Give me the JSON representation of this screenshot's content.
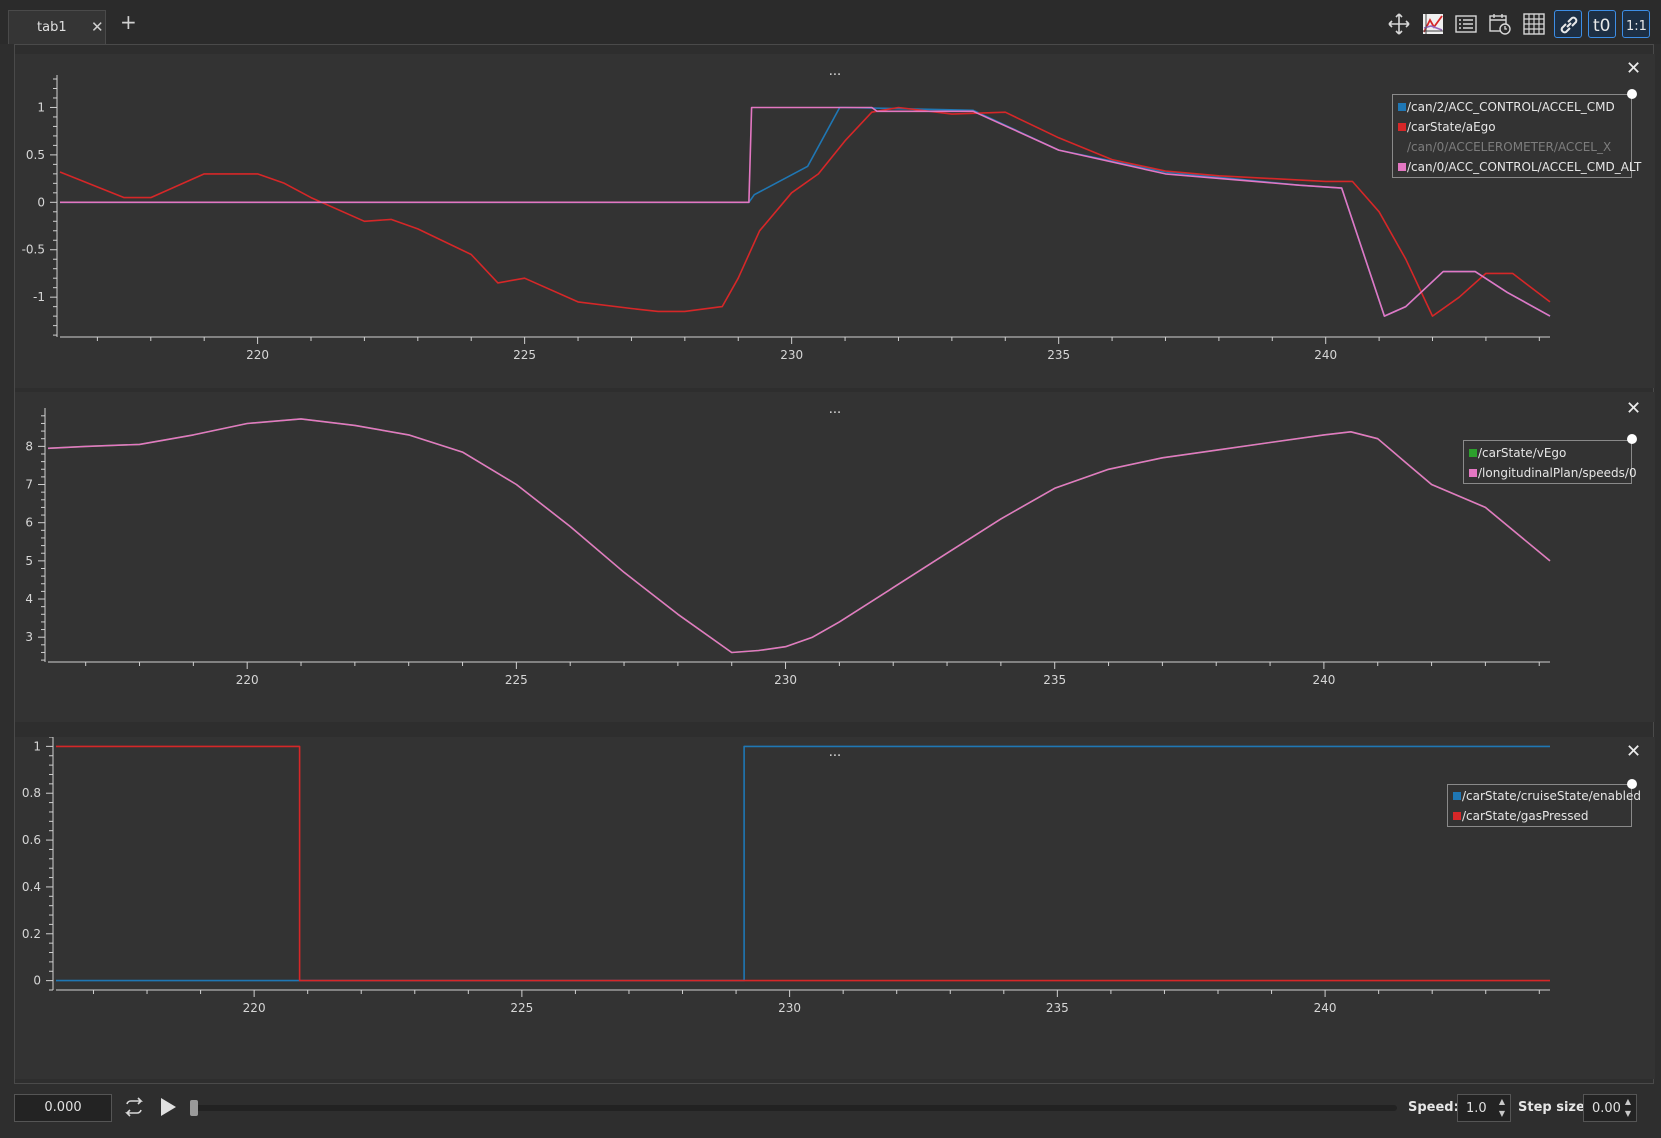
{
  "tab": {
    "label": "tab1"
  },
  "toolbar": {
    "icons": [
      "move-icon",
      "zoom-fit-icon",
      "list-icon",
      "calendar-icon",
      "grid-icon",
      "link-icon",
      "t0-icon",
      "one-to-one-icon"
    ],
    "t0_label": "t0",
    "ratio_label": "1:1"
  },
  "panels": [
    {
      "title": "...",
      "legend": [
        {
          "label": "/can/2/ACC_CONTROL/ACCEL_CMD",
          "color": "#1f77b4",
          "visible": true
        },
        {
          "label": "/carState/aEgo",
          "color": "#d62728",
          "visible": true
        },
        {
          "label": "/can/0/ACCELEROMETER/ACCEL_X",
          "color": "#7d7d7d",
          "visible": false
        },
        {
          "label": "/can/0/ACC_CONTROL/ACCEL_CMD_ALT",
          "color": "#e377c2",
          "visible": true
        }
      ]
    },
    {
      "title": "...",
      "legend": [
        {
          "label": "/carState/vEgo",
          "color": "#2ca02c",
          "visible": true
        },
        {
          "label": "/longitudinalPlan/speeds/0",
          "color": "#e377c2",
          "visible": true
        }
      ]
    },
    {
      "title": "...",
      "legend": [
        {
          "label": "/carState/cruiseState/enabled",
          "color": "#1f77b4",
          "visible": true
        },
        {
          "label": "/carState/gasPressed",
          "color": "#d62728",
          "visible": true
        }
      ]
    }
  ],
  "playback": {
    "time": "0.000",
    "speed_label": "Speed:",
    "speed_value": "1.0",
    "step_label": "Step size:",
    "step_value": "0.00",
    "progress": 0.0
  },
  "chart_data": [
    {
      "type": "line",
      "title": "...",
      "xlim": [
        216.3,
        244.2
      ],
      "ylim": [
        -1.42,
        1.3
      ],
      "xticks": [
        220,
        225,
        230,
        235,
        240
      ],
      "yticks": [
        -1,
        -0.5,
        0,
        0.5,
        1
      ],
      "grid": false,
      "legend_position": "top-right",
      "series": [
        {
          "name": "/can/2/ACC_CONTROL/ACCEL_CMD",
          "color": "#1f77b4",
          "x": [
            216.3,
            229.2,
            229.3,
            230.3,
            230.9,
            231.0,
            233.4,
            235.0,
            237.0,
            239.5,
            240.3,
            241.1,
            241.5,
            242.2,
            242.8,
            243.4,
            244.2
          ],
          "y": [
            0,
            0,
            0.08,
            0.38,
            1.0,
            1.0,
            0.97,
            0.55,
            0.32,
            0.18,
            0.15,
            -1.2,
            -1.1,
            -0.73,
            -0.73,
            -0.95,
            -1.2
          ]
        },
        {
          "name": "/carState/aEgo",
          "color": "#d62728",
          "x": [
            216.3,
            217.5,
            218.0,
            219.0,
            220.0,
            220.5,
            221.0,
            222.0,
            222.5,
            223.0,
            224.0,
            224.5,
            225.0,
            226.0,
            227.0,
            227.5,
            228.0,
            228.7,
            229.0,
            229.4,
            230.0,
            230.5,
            231.0,
            231.5,
            232.0,
            233.0,
            234.0,
            235.0,
            236.0,
            237.0,
            238.0,
            240.0,
            240.5,
            241.0,
            241.5,
            242.0,
            242.5,
            243.0,
            243.5,
            244.2
          ],
          "y": [
            0.32,
            0.05,
            0.05,
            0.3,
            0.3,
            0.2,
            0.05,
            -0.2,
            -0.18,
            -0.28,
            -0.55,
            -0.85,
            -0.8,
            -1.05,
            -1.12,
            -1.15,
            -1.15,
            -1.1,
            -0.8,
            -0.3,
            0.1,
            0.3,
            0.65,
            0.95,
            1.0,
            0.93,
            0.95,
            0.68,
            0.45,
            0.33,
            0.28,
            0.22,
            0.22,
            -0.1,
            -0.6,
            -1.2,
            -1.0,
            -0.75,
            -0.75,
            -1.05
          ]
        },
        {
          "name": "/can/0/ACC_CONTROL/ACCEL_CMD_ALT",
          "color": "#e377c2",
          "x": [
            216.3,
            229.2,
            229.25,
            231.5,
            231.6,
            233.4,
            235.0,
            237.0,
            239.5,
            240.3,
            241.1,
            241.5,
            242.2,
            242.8,
            243.4,
            244.2
          ],
          "y": [
            0,
            0,
            1.0,
            1.0,
            0.96,
            0.96,
            0.55,
            0.3,
            0.18,
            0.15,
            -1.2,
            -1.1,
            -0.73,
            -0.73,
            -0.95,
            -1.2
          ]
        }
      ]
    },
    {
      "type": "line",
      "title": "...",
      "xlim": [
        216.3,
        244.2
      ],
      "ylim": [
        2.35,
        8.9
      ],
      "xticks": [
        220,
        225,
        230,
        235,
        240
      ],
      "yticks": [
        3,
        4,
        5,
        6,
        7,
        8
      ],
      "grid": false,
      "legend_position": "top-right",
      "series": [
        {
          "name": "/carState/vEgo",
          "color": "#2ca02c",
          "x": [
            216.3,
            217.0,
            218.0,
            219.0,
            220.0,
            221.0,
            222.0,
            223.0,
            224.0,
            225.0,
            226.0,
            227.0,
            228.0,
            229.0,
            229.5,
            230.0,
            230.5,
            231.0,
            232.0,
            233.0,
            234.0,
            235.0,
            236.0,
            237.0,
            238.0,
            239.0,
            240.0,
            240.5,
            241.0,
            241.5,
            242.0,
            243.0,
            244.2
          ],
          "y": [
            7.95,
            8.0,
            8.05,
            8.3,
            8.6,
            8.72,
            8.55,
            8.3,
            7.85,
            7.0,
            5.9,
            4.7,
            3.6,
            2.6,
            2.65,
            2.75,
            3.0,
            3.4,
            4.3,
            5.2,
            6.1,
            6.9,
            7.4,
            7.7,
            7.9,
            8.1,
            8.3,
            8.38,
            8.2,
            7.6,
            7.0,
            6.4,
            5.0
          ]
        },
        {
          "name": "/longitudinalPlan/speeds/0",
          "color": "#e377c2",
          "x": [
            216.3,
            217.0,
            218.0,
            219.0,
            220.0,
            221.0,
            222.0,
            223.0,
            224.0,
            225.0,
            226.0,
            227.0,
            228.0,
            229.0,
            229.5,
            230.0,
            230.5,
            231.0,
            232.0,
            233.0,
            234.0,
            235.0,
            236.0,
            237.0,
            238.0,
            239.0,
            240.0,
            240.5,
            241.0,
            241.5,
            242.0,
            243.0,
            244.2
          ],
          "y": [
            7.95,
            8.0,
            8.05,
            8.3,
            8.6,
            8.72,
            8.55,
            8.3,
            7.85,
            7.0,
            5.9,
            4.7,
            3.6,
            2.6,
            2.65,
            2.75,
            3.0,
            3.4,
            4.3,
            5.2,
            6.1,
            6.9,
            7.4,
            7.7,
            7.9,
            8.1,
            8.3,
            8.38,
            8.2,
            7.6,
            7.0,
            6.4,
            5.0
          ]
        }
      ]
    },
    {
      "type": "line",
      "title": "...",
      "xlim": [
        216.3,
        244.2
      ],
      "ylim": [
        -0.04,
        1.04
      ],
      "xticks": [
        220,
        225,
        230,
        235,
        240
      ],
      "yticks": [
        0,
        0.2,
        0.4,
        0.6,
        0.8,
        1
      ],
      "grid": false,
      "legend_position": "top-right",
      "series": [
        {
          "name": "/carState/cruiseState/enabled",
          "color": "#1f77b4",
          "x": [
            216.3,
            229.15,
            229.15,
            244.2
          ],
          "y": [
            0,
            0,
            1,
            1
          ]
        },
        {
          "name": "/carState/gasPressed",
          "color": "#d62728",
          "x": [
            216.3,
            220.85,
            220.85,
            244.2
          ],
          "y": [
            1,
            1,
            0,
            0
          ]
        }
      ]
    }
  ]
}
